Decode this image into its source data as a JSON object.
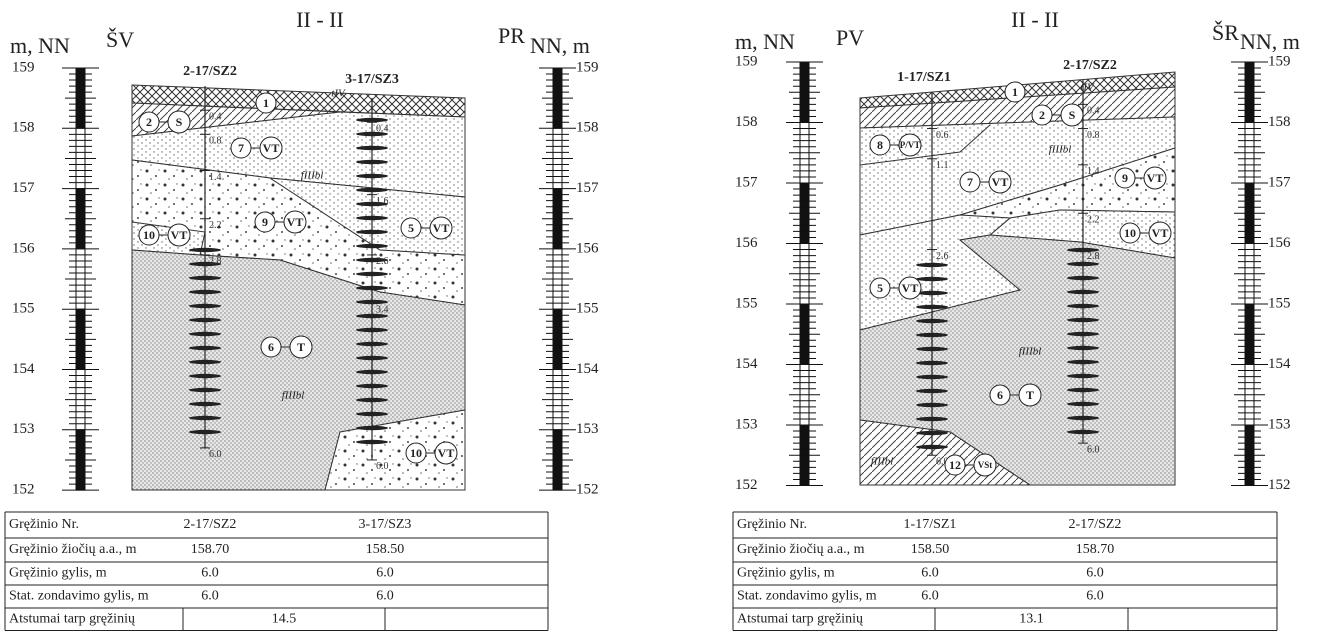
{
  "panels": [
    {
      "title": "II - II",
      "left_direction": "ŠV",
      "right_direction": "PR",
      "left_axis_label": "m, NN",
      "right_axis_label": "NN, m",
      "left_scale": [
        "159",
        "158",
        "157",
        "156",
        "155",
        "154",
        "153",
        "152"
      ],
      "right_scale": [
        "159",
        "158",
        "157",
        "156",
        "155",
        "154",
        "153",
        "152"
      ],
      "boreholes": [
        {
          "name": "2-17/SZ2",
          "depths": [
            "0.4",
            "0.8",
            "1.4",
            "2.2",
            "2.8",
            "6.0"
          ]
        },
        {
          "name": "3-17/SZ3",
          "depths": [
            "0.4",
            "1.6",
            "2.6",
            "3.4",
            "6.0"
          ]
        }
      ],
      "layers": [
        {
          "number": "1"
        },
        {
          "number": "2",
          "code": "S"
        },
        {
          "number": "7",
          "code": "VT"
        },
        {
          "number": "10",
          "code": "VT"
        },
        {
          "number": "9",
          "code": "VT"
        },
        {
          "number": "5",
          "code": "VT"
        },
        {
          "number": "6",
          "code": "T"
        },
        {
          "number": "10",
          "code": "VT"
        }
      ],
      "indices": [
        "tIV",
        "fIIIbl",
        "fIIIbl"
      ],
      "table": {
        "rows": [
          [
            "Gręžinio Nr.",
            "2-17/SZ2",
            "3-17/SZ3"
          ],
          [
            "Gręžinio žiočių a.a., m",
            "158.70",
            "158.50"
          ],
          [
            "Gręžinio gylis, m",
            "6.0",
            "6.0"
          ],
          [
            "Stat. zondavimo gylis, m",
            "6.0",
            "6.0"
          ],
          [
            "Atstumai tarp gręžinių",
            "14.5"
          ]
        ]
      }
    },
    {
      "title": "II - II",
      "left_direction": "PV",
      "right_direction": "ŠR",
      "left_axis_label": "m, NN",
      "right_axis_label": "NN, m",
      "left_scale": [
        "159",
        "158",
        "157",
        "156",
        "155",
        "154",
        "153",
        "152"
      ],
      "right_scale": [
        "159",
        "158",
        "157",
        "156",
        "155",
        "154",
        "153",
        "152"
      ],
      "boreholes": [
        {
          "name": "1-17/SZ1",
          "depths": [
            "0.6",
            "1.1",
            "2.6",
            "6.0"
          ]
        },
        {
          "name": "2-17/SZ2",
          "depths": [
            "0.4",
            "0.8",
            "1.4",
            "2.2",
            "2.8",
            "6.0"
          ]
        }
      ],
      "layers": [
        {
          "number": "1"
        },
        {
          "number": "2",
          "code": "S"
        },
        {
          "number": "8",
          "code": "P/VT"
        },
        {
          "number": "7",
          "code": "VT"
        },
        {
          "number": "9",
          "code": "VT"
        },
        {
          "number": "10",
          "code": "VT"
        },
        {
          "number": "5",
          "code": "VT"
        },
        {
          "number": "6",
          "code": "T"
        },
        {
          "number": "12",
          "code": "VSt"
        }
      ],
      "indices": [
        "tIV",
        "fIIIbl",
        "fIIIbl",
        "fIIIbl"
      ],
      "table": {
        "rows": [
          [
            "Gręžinio Nr.",
            "1-17/SZ1",
            "2-17/SZ2"
          ],
          [
            "Gręžinio žiočių a.a., m",
            "158.50",
            "158.70"
          ],
          [
            "Gręžinio gylis, m",
            "6.0",
            "6.0"
          ],
          [
            "Stat. zondavimo gylis, m",
            "6.0",
            "6.0"
          ],
          [
            "Atstumai tarp gręžinių",
            "13.1"
          ]
        ]
      }
    }
  ]
}
